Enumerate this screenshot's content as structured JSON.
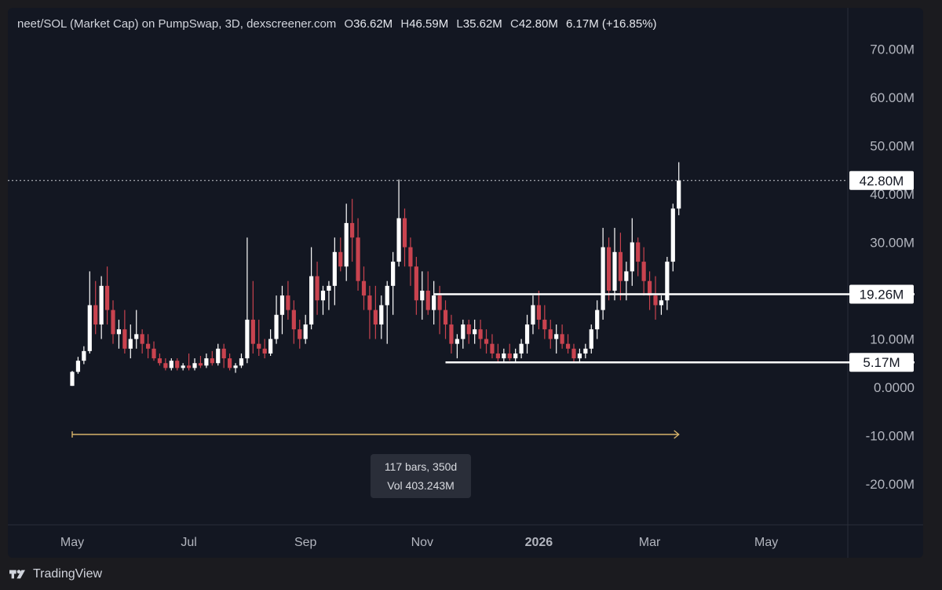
{
  "legend": {
    "title": "neet/SOL (Market Cap) on PumpSwap, 3D, dexscreener.com",
    "o_label": "O",
    "o": "36.62M",
    "h_label": "H",
    "h": "46.59M",
    "l_label": "L",
    "l": "35.62M",
    "c_label": "C",
    "c": "42.80M",
    "change": "6.17M (+16.85%)"
  },
  "measure": {
    "bars_text": "117 bars, 350d",
    "vol_text": "Vol 403.243M"
  },
  "footer": {
    "brand": "TradingView"
  },
  "colors": {
    "up": "#ffffff",
    "down": "#c9434f",
    "background": "#131722",
    "grid_text": "#b2b5be",
    "range_arrow": "#d7b36a"
  },
  "chart_data": {
    "type": "candlestick",
    "title": "neet/SOL (Market Cap) on PumpSwap, 3D, dexscreener.com",
    "y_unit": "M",
    "ylim": [
      -30,
      75
    ],
    "y_ticks": [
      {
        "value": 70,
        "label": "70.00M"
      },
      {
        "value": 60,
        "label": "60.00M"
      },
      {
        "value": 50,
        "label": "50.00M"
      },
      {
        "value": 40,
        "label": "40.00M"
      },
      {
        "value": 30,
        "label": "30.00M"
      },
      {
        "value": 10,
        "label": "10.00M"
      },
      {
        "value": 0,
        "label": "0.0000"
      },
      {
        "value": -10,
        "label": "-10.00M"
      },
      {
        "value": -20,
        "label": "-20.00M"
      }
    ],
    "x_ticks": [
      {
        "bar": 0,
        "label": "May",
        "bold": false
      },
      {
        "bar": 20,
        "label": "Jul",
        "bold": false
      },
      {
        "bar": 40,
        "label": "Sep",
        "bold": false
      },
      {
        "bar": 60,
        "label": "Nov",
        "bold": false
      },
      {
        "bar": 80,
        "label": "2026",
        "bold": true
      },
      {
        "bar": 99,
        "label": "Mar",
        "bold": false
      },
      {
        "bar": 119,
        "label": "May",
        "bold": false
      }
    ],
    "price_labels": [
      {
        "value": 42.8,
        "label": "42.80M",
        "line": "dotted"
      },
      {
        "value": 19.26,
        "label": "19.26M",
        "line": "solid",
        "from_bar": 62
      },
      {
        "value": 5.17,
        "label": "5.17M",
        "line": "solid",
        "from_bar": 64
      }
    ],
    "candles": [
      [
        0.3,
        3.4,
        0.3,
        3.2
      ],
      [
        3.2,
        6.3,
        2.8,
        5.5
      ],
      [
        5.5,
        8.5,
        4.8,
        7.5
      ],
      [
        7.5,
        24,
        7,
        17
      ],
      [
        17,
        22,
        11,
        13
      ],
      [
        13,
        23,
        10,
        21
      ],
      [
        21,
        25,
        13,
        16
      ],
      [
        16,
        18,
        9,
        11
      ],
      [
        11,
        14,
        8,
        12
      ],
      [
        12,
        16,
        7,
        8
      ],
      [
        8,
        13,
        6,
        10
      ],
      [
        10,
        16,
        8,
        11
      ],
      [
        11,
        12,
        7,
        9
      ],
      [
        9,
        11,
        6,
        8
      ],
      [
        8,
        9.5,
        5.5,
        6
      ],
      [
        6,
        7,
        4.5,
        5
      ],
      [
        5,
        6,
        3.5,
        4
      ],
      [
        4,
        6,
        3.5,
        5.5
      ],
      [
        5.5,
        6,
        3.5,
        4
      ],
      [
        4,
        5,
        3.5,
        4.5
      ],
      [
        4.5,
        7,
        3.5,
        4
      ],
      [
        4,
        6,
        3.5,
        5
      ],
      [
        5,
        6.5,
        4,
        4.5
      ],
      [
        4.5,
        7,
        4,
        6
      ],
      [
        6,
        7.5,
        4.5,
        5
      ],
      [
        5,
        9,
        4.5,
        8
      ],
      [
        8,
        9,
        4,
        6
      ],
      [
        6,
        7,
        3.5,
        4
      ],
      [
        4,
        5,
        3,
        4.5
      ],
      [
        4.5,
        7,
        4,
        6
      ],
      [
        6,
        31,
        5,
        14
      ],
      [
        14,
        22,
        7,
        9
      ],
      [
        9,
        14,
        6.5,
        8
      ],
      [
        8,
        10,
        6,
        7
      ],
      [
        7,
        12,
        6.5,
        10
      ],
      [
        10,
        19,
        9,
        15
      ],
      [
        15,
        21,
        11,
        19
      ],
      [
        19,
        22,
        14,
        16
      ],
      [
        16,
        18,
        9,
        12
      ],
      [
        12,
        14,
        8,
        10
      ],
      [
        10,
        15,
        9,
        13
      ],
      [
        13,
        29,
        12,
        23
      ],
      [
        23,
        26,
        15,
        18
      ],
      [
        18,
        21,
        15,
        20
      ],
      [
        20,
        22,
        16,
        21
      ],
      [
        21,
        31,
        17,
        28
      ],
      [
        28,
        31,
        24,
        25
      ],
      [
        25,
        38,
        22,
        34
      ],
      [
        34,
        39,
        26,
        31
      ],
      [
        31,
        35,
        20,
        22
      ],
      [
        22,
        25,
        16,
        19
      ],
      [
        19,
        21,
        10,
        16
      ],
      [
        16,
        21,
        10,
        13
      ],
      [
        13,
        19,
        10,
        17
      ],
      [
        17,
        22,
        9,
        21
      ],
      [
        21,
        28,
        15,
        26
      ],
      [
        26,
        43,
        25,
        35
      ],
      [
        35,
        37,
        25,
        29
      ],
      [
        29,
        31,
        21,
        25
      ],
      [
        25,
        27,
        15,
        18
      ],
      [
        18,
        24,
        14,
        20
      ],
      [
        20,
        24,
        15,
        16
      ],
      [
        16,
        22,
        13,
        19
      ],
      [
        19,
        21,
        11,
        16
      ],
      [
        16,
        18,
        10,
        13
      ],
      [
        13,
        15,
        7,
        9
      ],
      [
        9,
        11,
        6,
        10
      ],
      [
        10,
        14,
        8,
        13
      ],
      [
        13,
        14,
        9,
        11
      ],
      [
        11,
        14,
        9,
        12
      ],
      [
        12,
        14,
        8,
        10
      ],
      [
        10,
        12,
        7,
        9
      ],
      [
        9,
        11,
        6,
        7
      ],
      [
        7,
        9,
        5,
        6
      ],
      [
        6,
        8,
        5,
        7
      ],
      [
        7,
        9,
        5.5,
        6
      ],
      [
        6,
        8,
        5,
        7
      ],
      [
        7,
        10,
        6,
        9
      ],
      [
        9,
        15,
        7,
        13
      ],
      [
        13,
        19,
        11,
        17
      ],
      [
        17,
        20,
        12,
        14
      ],
      [
        14,
        17,
        10,
        12
      ],
      [
        12,
        14,
        8,
        10
      ],
      [
        10,
        13,
        7,
        11
      ],
      [
        11,
        13,
        8,
        9
      ],
      [
        9,
        11,
        7,
        8
      ],
      [
        8,
        9,
        5,
        6
      ],
      [
        6,
        8,
        5,
        7
      ],
      [
        7,
        9,
        6,
        8
      ],
      [
        8,
        13,
        7,
        12
      ],
      [
        12,
        18,
        10,
        16
      ],
      [
        16,
        33,
        14,
        29
      ],
      [
        29,
        31,
        18,
        20
      ],
      [
        20,
        33,
        18,
        28
      ],
      [
        28,
        32,
        18,
        22
      ],
      [
        22,
        26,
        18,
        24
      ],
      [
        24,
        35,
        21,
        30
      ],
      [
        30,
        31,
        23,
        26
      ],
      [
        26,
        29,
        19,
        22
      ],
      [
        22,
        24,
        16,
        19
      ],
      [
        19,
        23,
        14,
        17
      ],
      [
        17,
        19,
        15,
        18
      ],
      [
        18,
        27,
        16,
        26
      ],
      [
        26,
        38,
        24,
        37
      ],
      [
        37,
        46.59,
        35.62,
        42.8
      ]
    ]
  }
}
